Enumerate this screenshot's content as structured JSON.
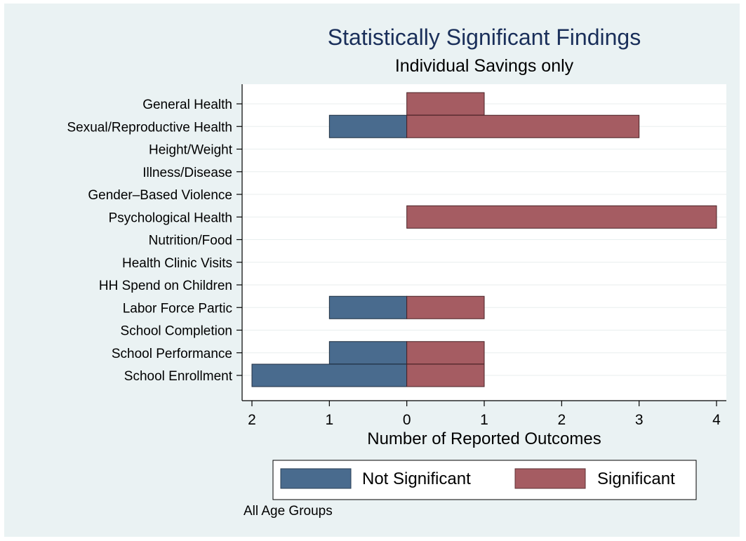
{
  "chart_data": {
    "type": "bar",
    "orientation": "horizontal",
    "stacking": "diverging",
    "title": "Statistically Significant Findings",
    "subtitle": "Individual Savings only",
    "xlabel": "Number of Reported Outcomes",
    "note": "All Age Groups",
    "categories": [
      "General Health",
      "Sexual/Reproductive Health",
      "Height/Weight",
      "Illness/Disease",
      "Gender–Based Violence",
      "Psychological Health",
      "Nutrition/Food",
      "Health Clinic Visits",
      "HH Spend on Children",
      "Labor Force Partic",
      "School Completion",
      "School Performance",
      "School Enrollment"
    ],
    "series": [
      {
        "name": "Not Significant",
        "direction": "left",
        "color": "#496b8e",
        "values": [
          0,
          1,
          0,
          0,
          0,
          0,
          0,
          0,
          0,
          1,
          0,
          1,
          2
        ]
      },
      {
        "name": "Significant",
        "direction": "right",
        "color": "#a55c62",
        "values": [
          1,
          3,
          0,
          0,
          0,
          4,
          0,
          0,
          0,
          1,
          0,
          1,
          1
        ]
      }
    ],
    "xlim": [
      -2,
      4
    ],
    "xticks": [
      {
        "value": -2,
        "label": "2"
      },
      {
        "value": -1,
        "label": "1"
      },
      {
        "value": 0,
        "label": "0"
      },
      {
        "value": 1,
        "label": "1"
      },
      {
        "value": 2,
        "label": "2"
      },
      {
        "value": 3,
        "label": "3"
      },
      {
        "value": 4,
        "label": "4"
      }
    ],
    "grid": "horizontal",
    "legend_position": "bottom",
    "colors": {
      "background": "#eaf2f3",
      "plot_background": "#ffffff",
      "title": "#1a2f5a"
    }
  }
}
